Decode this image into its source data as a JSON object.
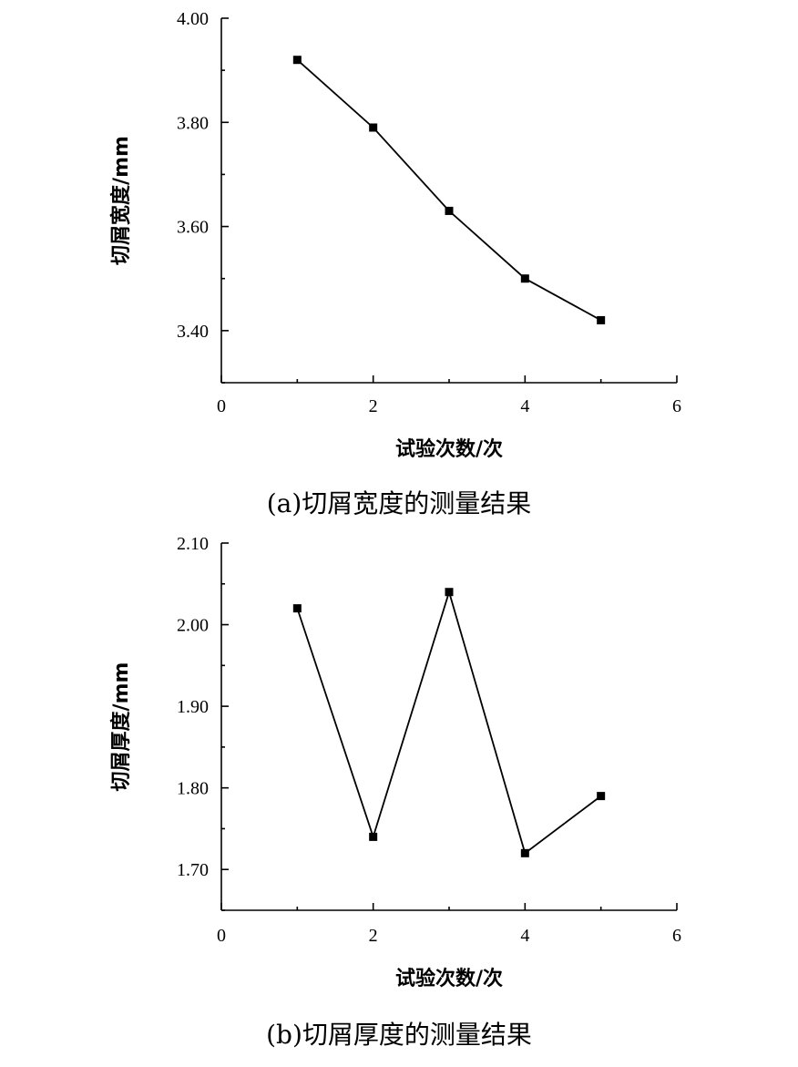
{
  "chart_data": [
    {
      "type": "line",
      "caption": "(a)切屑宽度的测量结果",
      "xlabel": "试验次数/次",
      "ylabel": "切屑宽度/mm",
      "xlim": [
        0,
        6
      ],
      "ylim": [
        3.3,
        4.0
      ],
      "xticks": [
        "0",
        "2",
        "4",
        "6"
      ],
      "yticks": [
        "3.40",
        "3.60",
        "3.80",
        "4.00"
      ],
      "grid": false,
      "series": [
        {
          "x": [
            1,
            2,
            3,
            4,
            5
          ],
          "y": [
            3.92,
            3.79,
            3.63,
            3.5,
            3.42
          ]
        }
      ]
    },
    {
      "type": "line",
      "caption": "(b)切屑厚度的测量结果",
      "xlabel": "试验次数/次",
      "ylabel": "切屑厚度/mm",
      "xlim": [
        0,
        6
      ],
      "ylim": [
        1.65,
        2.1
      ],
      "xticks": [
        "0",
        "2",
        "4",
        "6"
      ],
      "yticks": [
        "1.70",
        "1.80",
        "1.90",
        "2.00",
        "2.10"
      ],
      "grid": false,
      "series": [
        {
          "x": [
            1,
            2,
            3,
            4,
            5
          ],
          "y": [
            2.02,
            1.74,
            2.04,
            1.72,
            1.79
          ]
        }
      ]
    }
  ]
}
